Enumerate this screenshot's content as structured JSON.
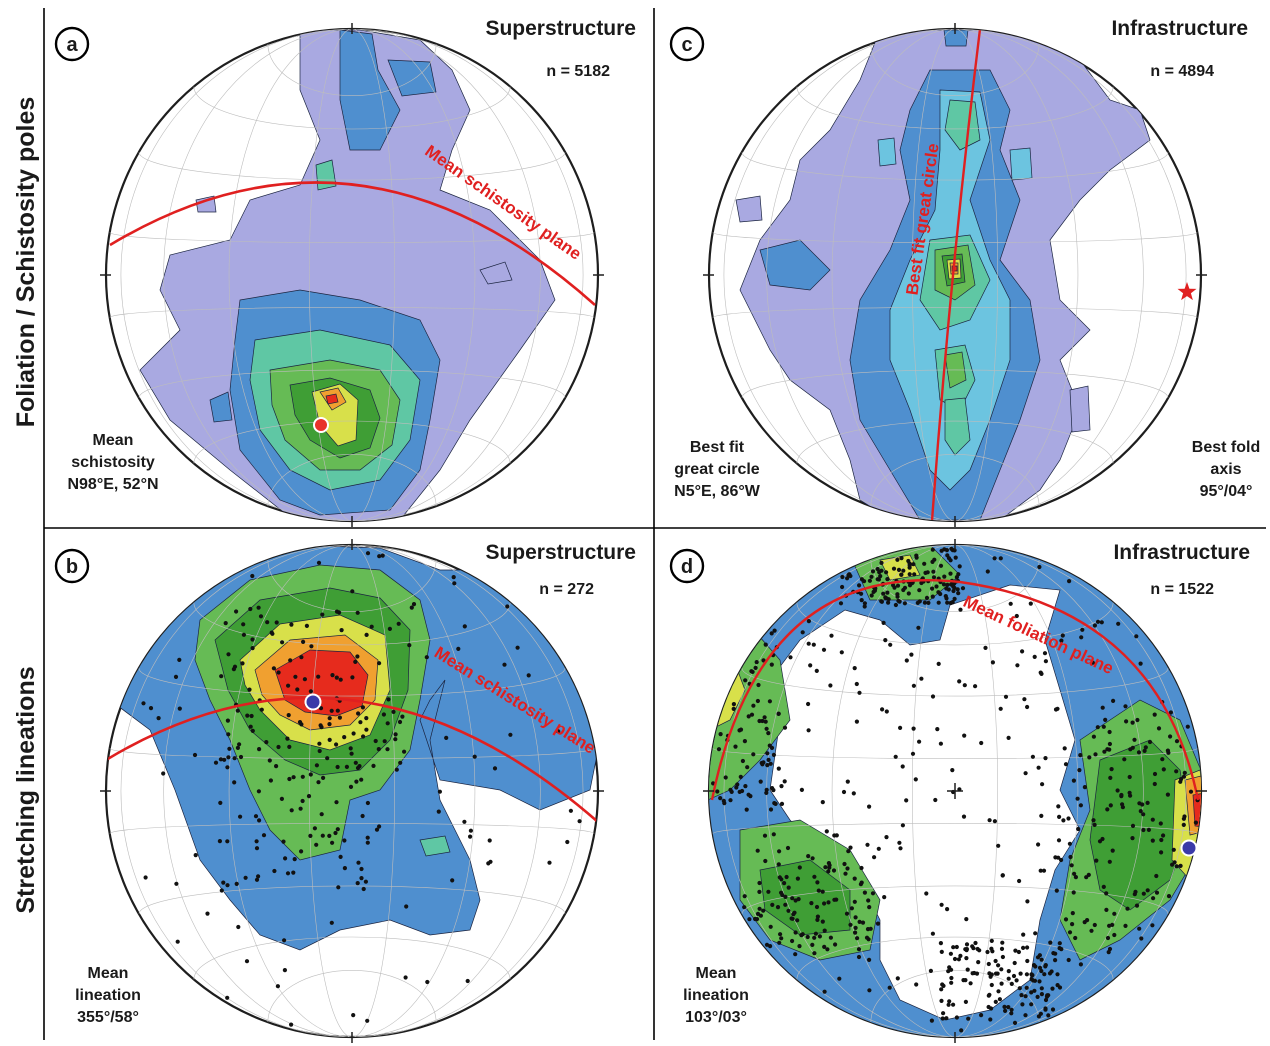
{
  "row_labels": {
    "top": "Foliation / Schistosity poles",
    "bottom": "Stretching lineations"
  },
  "panels": [
    {
      "id": "a",
      "letter": "a",
      "title": "Superstructure",
      "count": "n = 5182",
      "note_lines": [
        "Mean",
        "schistosity",
        "N98°E, 52°N"
      ],
      "plane_label": "Mean schistosity plane",
      "style": "contour"
    },
    {
      "id": "c",
      "letter": "c",
      "title": "Infrastructure",
      "count": "n = 4894",
      "note_lines": [
        "Best fit",
        "great circle",
        "N5°E, 86°W"
      ],
      "note2_lines": [
        "Best fold",
        "axis",
        "95°/04°"
      ],
      "plane_label": "Best fit great circle",
      "style": "contour"
    },
    {
      "id": "b",
      "letter": "b",
      "title": "Superstructure",
      "count": "n = 272",
      "note_lines": [
        "Mean",
        "lineation",
        "355°/58°"
      ],
      "plane_label": "Mean schistosity plane",
      "style": "density"
    },
    {
      "id": "d",
      "letter": "d",
      "title": "Infrastructure",
      "count": "n = 1522",
      "note_lines": [
        "Mean",
        "lineation",
        "103°/03°"
      ],
      "plane_label": "Mean foliation plane",
      "style": "density"
    }
  ],
  "colors": {
    "great_circle": "#e02020",
    "lavender": "#a9a9e1",
    "blue": "#4f8fcf",
    "cyan": "#6cc4e0",
    "teal": "#5fc7a4",
    "green": "#66bb55",
    "green_dark": "#3f9e35",
    "yellow": "#d8e04a",
    "orange": "#f0a030",
    "red": "#e62b1d",
    "mean_marker_red": "#e8322a",
    "mean_marker_blue": "#3a3aa8",
    "fold_axis_star": "#e02020"
  },
  "icons": {
    "mean_schistosity_marker": "red-dot-icon",
    "mean_lineation_marker": "blue-dot-icon",
    "fold_axis_marker": "red-star-icon"
  }
}
